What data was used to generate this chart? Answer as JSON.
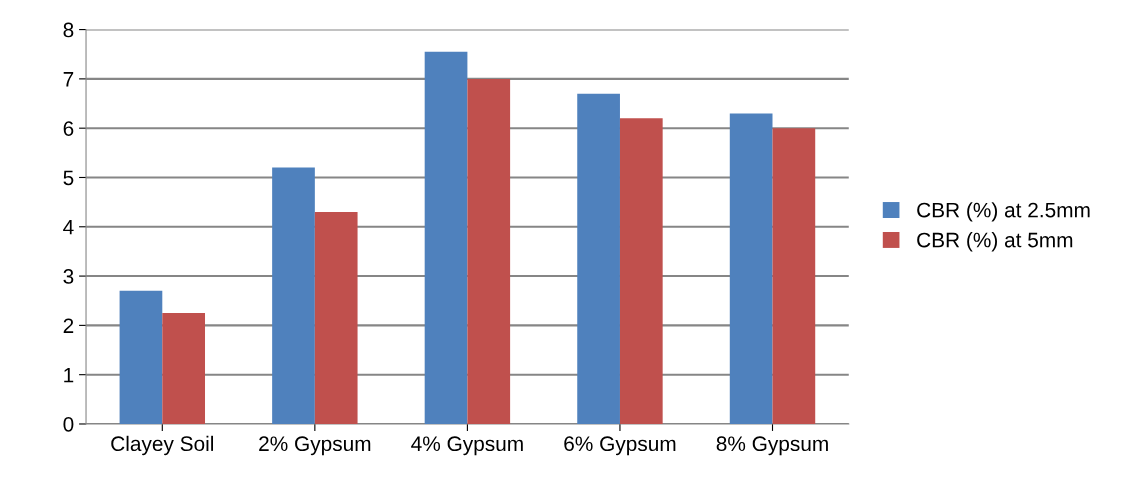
{
  "chart_data": {
    "type": "bar",
    "categories": [
      "Clayey Soil",
      "2% Gypsum",
      "4% Gypsum",
      "6% Gypsum",
      "8% Gypsum"
    ],
    "series": [
      {
        "name": "CBR (%) at 2.5mm",
        "color": "#4f81bd",
        "values": [
          2.7,
          5.2,
          7.55,
          6.7,
          6.3
        ]
      },
      {
        "name": "CBR (%) at 5mm",
        "color": "#c0504d",
        "values": [
          2.25,
          4.3,
          7.0,
          6.2,
          6.0
        ]
      }
    ],
    "ylim": [
      0,
      8
    ],
    "yticks": [
      0,
      1,
      2,
      3,
      4,
      5,
      6,
      7,
      8
    ],
    "grid": "y",
    "legend": "right"
  }
}
